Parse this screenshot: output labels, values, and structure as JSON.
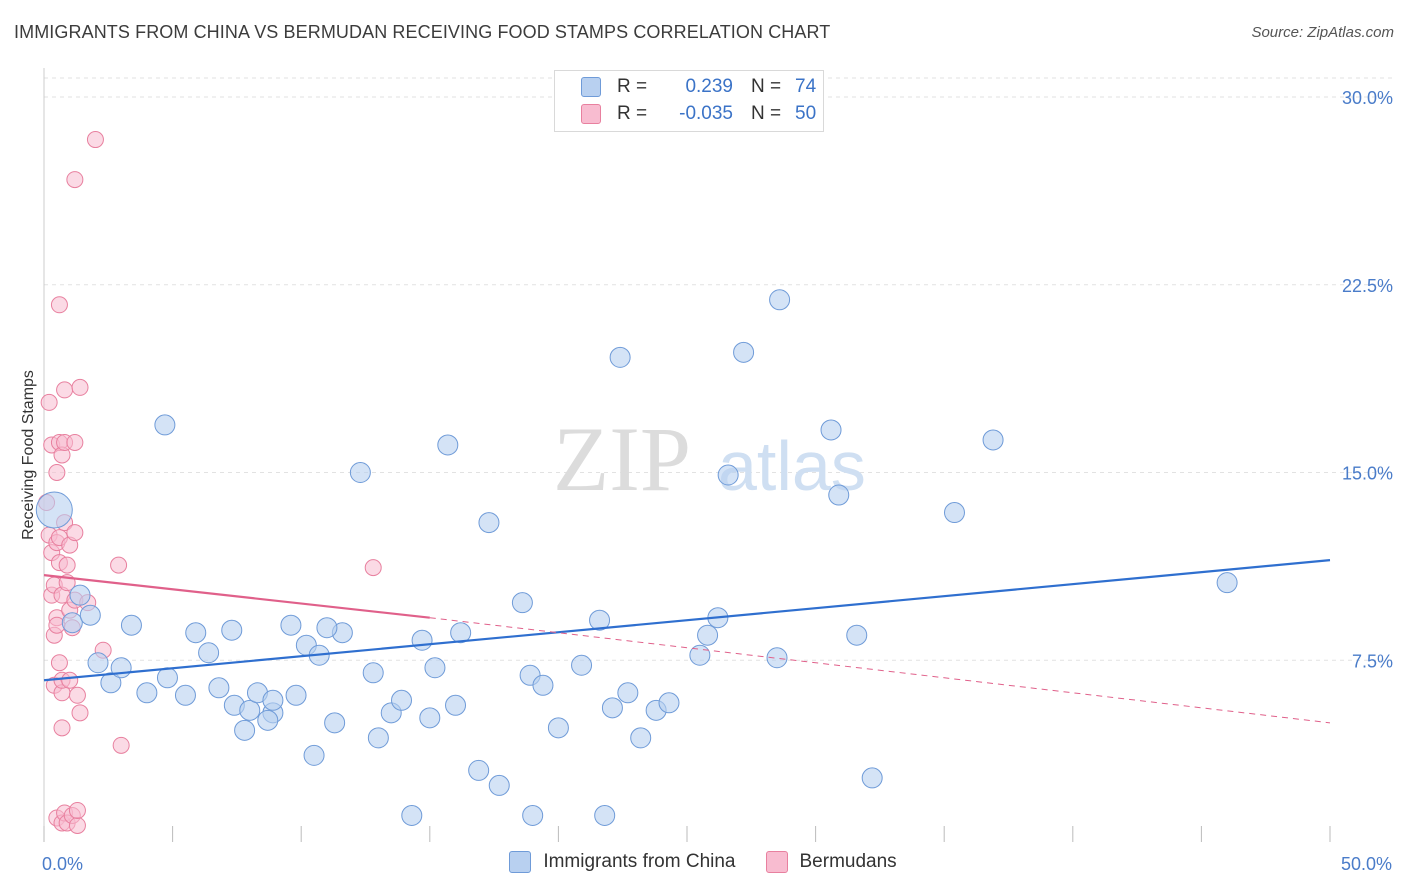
{
  "header": {
    "title": "IMMIGRANTS FROM CHINA VS BERMUDAN RECEIVING FOOD STAMPS CORRELATION CHART",
    "source": "Source: ZipAtlas.com"
  },
  "colors": {
    "china_fill": "#b8d0f0",
    "china_stroke": "#6f9bd8",
    "china_line": "#2f6fcf",
    "bermudan_fill": "#f8bcd0",
    "bermudan_stroke": "#e8809f",
    "bermudan_line": "#e0608a",
    "grid": "#e2e2e2",
    "axis_label": "#4a7cc9"
  },
  "legend": {
    "rows": [
      {
        "r_label": "R =",
        "r_value": "0.239",
        "n_label": "N =",
        "n_value": "74"
      },
      {
        "r_label": "R =",
        "r_value": "-0.035",
        "n_label": "N =",
        "n_value": "50"
      }
    ]
  },
  "watermark": {
    "zip": "ZIP",
    "atlas": "atlas"
  },
  "chart_data": {
    "type": "scatter",
    "title": "IMMIGRANTS FROM CHINA VS BERMUDAN RECEIVING FOOD STAMPS CORRELATION CHART",
    "ylabel": "Receiving Food Stamps",
    "xlabel": "",
    "xlim": [
      0,
      50
    ],
    "ylim": [
      0,
      32
    ],
    "x_tick_labels": [
      "0.0%",
      "50.0%"
    ],
    "y_ticks": [
      {
        "value": 7.5,
        "label": "7.5%"
      },
      {
        "value": 15.0,
        "label": "15.0%"
      },
      {
        "value": 22.5,
        "label": "22.5%"
      },
      {
        "value": 30.0,
        "label": "30.0%"
      }
    ],
    "grid": true,
    "series": [
      {
        "name": "Immigrants from China",
        "x": [
          0.4,
          1.4,
          1.1,
          1.8,
          2.1,
          2.6,
          3.0,
          3.4,
          4.0,
          4.8,
          4.7,
          5.5,
          5.9,
          6.4,
          6.8,
          7.4,
          7.3,
          8.0,
          8.3,
          7.8,
          8.9,
          8.7,
          8.9,
          9.6,
          9.8,
          10.5,
          10.2,
          10.7,
          11.3,
          11.6,
          11.0,
          12.3,
          12.8,
          13.0,
          13.5,
          13.9,
          14.3,
          14.7,
          15.2,
          15.0,
          15.7,
          16.0,
          16.2,
          16.9,
          17.3,
          17.7,
          18.6,
          18.9,
          19.0,
          19.4,
          20.0,
          20.9,
          21.6,
          21.8,
          22.1,
          22.4,
          22.7,
          23.2,
          23.8,
          24.3,
          25.5,
          25.8,
          26.2,
          26.6,
          27.2,
          28.5,
          28.6,
          30.6,
          30.9,
          31.6,
          32.2,
          35.4,
          36.9,
          46.0
        ],
        "y": [
          13.5,
          10.1,
          9.0,
          9.3,
          7.4,
          6.6,
          7.2,
          8.9,
          6.2,
          6.8,
          16.9,
          6.1,
          8.6,
          7.8,
          6.4,
          5.7,
          8.7,
          5.5,
          6.2,
          4.7,
          5.4,
          5.1,
          5.9,
          8.9,
          6.1,
          3.7,
          8.1,
          7.7,
          5.0,
          8.6,
          8.8,
          15.0,
          7.0,
          4.4,
          5.4,
          5.9,
          1.3,
          8.3,
          7.2,
          5.2,
          16.1,
          5.7,
          8.6,
          3.1,
          13.0,
          2.5,
          9.8,
          6.9,
          1.3,
          6.5,
          4.8,
          7.3,
          9.1,
          1.3,
          5.6,
          19.6,
          6.2,
          4.4,
          5.5,
          5.8,
          7.7,
          8.5,
          9.2,
          14.9,
          19.8,
          7.6,
          21.9,
          16.7,
          14.1,
          8.5,
          2.8,
          13.4,
          16.3,
          10.6
        ],
        "sizes": [
          18,
          10,
          10,
          10,
          10,
          10,
          10,
          10,
          10,
          10,
          10,
          10,
          10,
          10,
          10,
          10,
          10,
          10,
          10,
          10,
          10,
          10,
          10,
          10,
          10,
          10,
          10,
          10,
          10,
          10,
          10,
          10,
          10,
          10,
          10,
          10,
          10,
          10,
          10,
          10,
          10,
          10,
          10,
          10,
          10,
          10,
          10,
          10,
          10,
          10,
          10,
          10,
          10,
          10,
          10,
          10,
          10,
          10,
          10,
          10,
          10,
          10,
          10,
          10,
          10,
          10,
          10,
          10,
          10,
          10,
          10,
          10,
          10,
          10
        ],
        "trend": {
          "x": [
            0,
            50
          ],
          "y": [
            6.7,
            11.5
          ]
        }
      },
      {
        "name": "Bermudans",
        "x": [
          0.1,
          0.2,
          0.2,
          0.3,
          0.3,
          0.3,
          0.4,
          0.4,
          0.4,
          0.5,
          0.5,
          0.5,
          0.5,
          0.5,
          0.6,
          0.6,
          0.6,
          0.6,
          0.6,
          0.7,
          0.7,
          0.7,
          0.7,
          0.7,
          0.7,
          0.8,
          0.8,
          0.8,
          0.8,
          0.9,
          0.9,
          0.9,
          1.0,
          1.0,
          1.0,
          1.1,
          1.1,
          1.2,
          1.2,
          1.2,
          1.3,
          1.3,
          1.3,
          1.4,
          1.4,
          1.7,
          2.3,
          2.9,
          3.0,
          12.8
        ],
        "y": [
          13.8,
          17.8,
          12.5,
          16.1,
          11.8,
          10.1,
          10.5,
          8.5,
          6.5,
          9.2,
          15.0,
          12.2,
          8.9,
          1.2,
          21.7,
          12.4,
          16.2,
          11.4,
          7.4,
          4.8,
          6.2,
          15.7,
          6.7,
          1.0,
          10.1,
          13.0,
          16.2,
          18.3,
          1.4,
          11.3,
          1.0,
          10.6,
          12.1,
          9.5,
          6.7,
          1.3,
          8.8,
          16.2,
          9.9,
          12.6,
          0.9,
          1.5,
          6.1,
          18.4,
          5.4,
          9.8,
          7.9,
          11.3,
          4.1,
          11.2
        ],
        "sizes": [
          8,
          8,
          8,
          8,
          8,
          8,
          8,
          8,
          8,
          8,
          8,
          8,
          8,
          8,
          8,
          8,
          8,
          8,
          8,
          8,
          8,
          8,
          8,
          8,
          8,
          8,
          8,
          8,
          8,
          8,
          8,
          8,
          8,
          8,
          8,
          8,
          8,
          8,
          8,
          8,
          8,
          8,
          8,
          8,
          8,
          8,
          8,
          8,
          8,
          8
        ],
        "extra": {
          "x": [
            2.0,
            1.2
          ],
          "y": [
            28.3,
            26.7
          ]
        },
        "trend_solid": {
          "x": [
            0,
            15
          ],
          "y": [
            10.9,
            9.2
          ]
        },
        "trend_dashed": {
          "x": [
            15,
            50
          ],
          "y": [
            9.2,
            5.0
          ]
        }
      }
    ]
  },
  "bottom_legend": {
    "items": [
      {
        "label": "Immigrants from China"
      },
      {
        "label": "Bermudans"
      }
    ]
  }
}
